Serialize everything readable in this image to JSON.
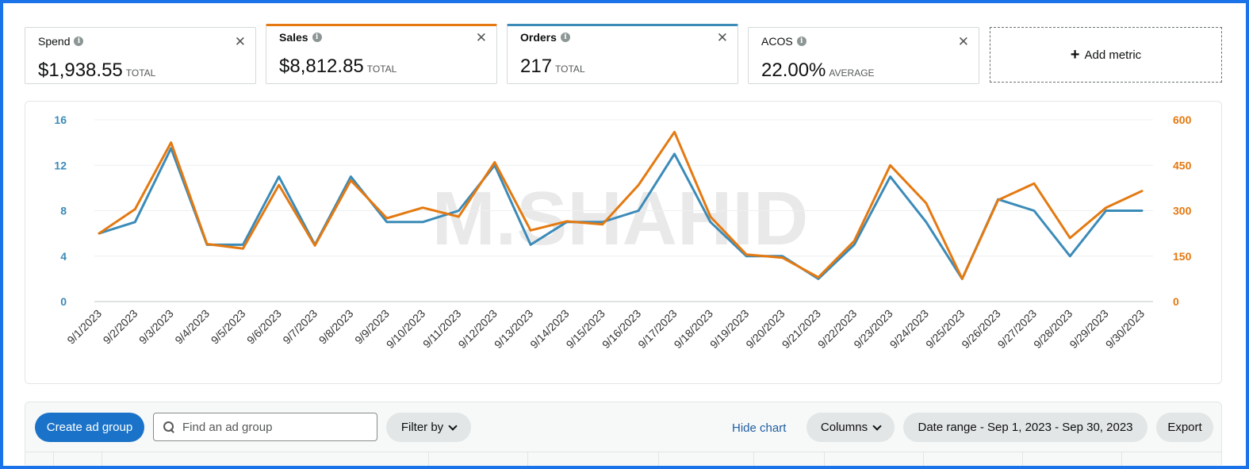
{
  "metrics": [
    {
      "name": "Spend",
      "value": "$1,938.55",
      "suffix": "TOTAL"
    },
    {
      "name": "Sales",
      "value": "$8,812.85",
      "suffix": "TOTAL"
    },
    {
      "name": "Orders",
      "value": "217",
      "suffix": "TOTAL"
    },
    {
      "name": "ACOS",
      "value": "22.00%",
      "suffix": "AVERAGE"
    }
  ],
  "add_metric_label": "Add metric",
  "colors": {
    "orders": "#3b8bb8",
    "sales": "#e47911",
    "primary": "#1a73c9",
    "frame": "#1a73e8"
  },
  "watermark": {
    "text": "M.SHAHID"
  },
  "chart_data": {
    "type": "line",
    "x": [
      "9/1/2023",
      "9/2/2023",
      "9/3/2023",
      "9/4/2023",
      "9/5/2023",
      "9/6/2023",
      "9/7/2023",
      "9/8/2023",
      "9/9/2023",
      "9/10/2023",
      "9/11/2023",
      "9/12/2023",
      "9/13/2023",
      "9/14/2023",
      "9/15/2023",
      "9/16/2023",
      "9/17/2023",
      "9/18/2023",
      "9/19/2023",
      "9/20/2023",
      "9/21/2023",
      "9/22/2023",
      "9/23/2023",
      "9/24/2023",
      "9/25/2023",
      "9/26/2023",
      "9/27/2023",
      "9/28/2023",
      "9/29/2023",
      "9/30/2023"
    ],
    "y_left_ticks": [
      "16",
      "12",
      "8",
      "4",
      "0"
    ],
    "y_right_ticks": [
      "600",
      "450",
      "300",
      "150",
      "0"
    ],
    "y_left_lim": [
      0,
      16
    ],
    "y_right_lim": [
      0,
      600
    ],
    "grid": true,
    "series": [
      {
        "axis": "left",
        "color": "#3b8bb8",
        "values": [
          6,
          7,
          13.5,
          5,
          5,
          11,
          5,
          11,
          7,
          7,
          8,
          12,
          5,
          7,
          7,
          8,
          13,
          7,
          4,
          4,
          2,
          5,
          11,
          7,
          2,
          9,
          8,
          4,
          8,
          8
        ]
      },
      {
        "axis": "right",
        "color": "#e47911",
        "values": [
          225,
          305,
          525,
          190,
          175,
          385,
          185,
          400,
          275,
          310,
          280,
          460,
          235,
          265,
          255,
          385,
          560,
          280,
          155,
          145,
          80,
          200,
          450,
          325,
          75,
          335,
          390,
          210,
          310,
          365
        ]
      }
    ]
  },
  "toolbar": {
    "create_label": "Create ad group",
    "search_placeholder": "Find an ad group",
    "filter_label": "Filter by",
    "hide_chart_label": "Hide chart",
    "columns_label": "Columns",
    "date_range_label": "Date range - Sep 1, 2023 - Sep 30, 2023",
    "export_label": "Export"
  }
}
